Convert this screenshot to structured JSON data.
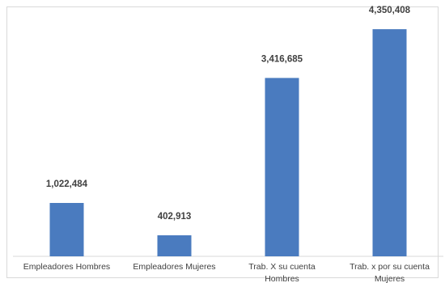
{
  "chart_data": {
    "type": "bar",
    "categories": [
      [
        "Empleadores Hombres"
      ],
      [
        "Empleadores Mujeres"
      ],
      [
        "Trab. X su cuenta",
        "Hombres"
      ],
      [
        "Trab. x por su cuenta",
        "Mujeres"
      ]
    ],
    "values": [
      1022484,
      402913,
      3416685,
      4350408
    ],
    "value_labels": [
      "1,022,484",
      "402,913",
      "3,416,685",
      "4,350,408"
    ],
    "title": "",
    "xlabel": "",
    "ylabel": "",
    "ylim": [
      0,
      4600000
    ],
    "grid": false,
    "legend": "none",
    "bar_color": "#4a7bbf"
  }
}
